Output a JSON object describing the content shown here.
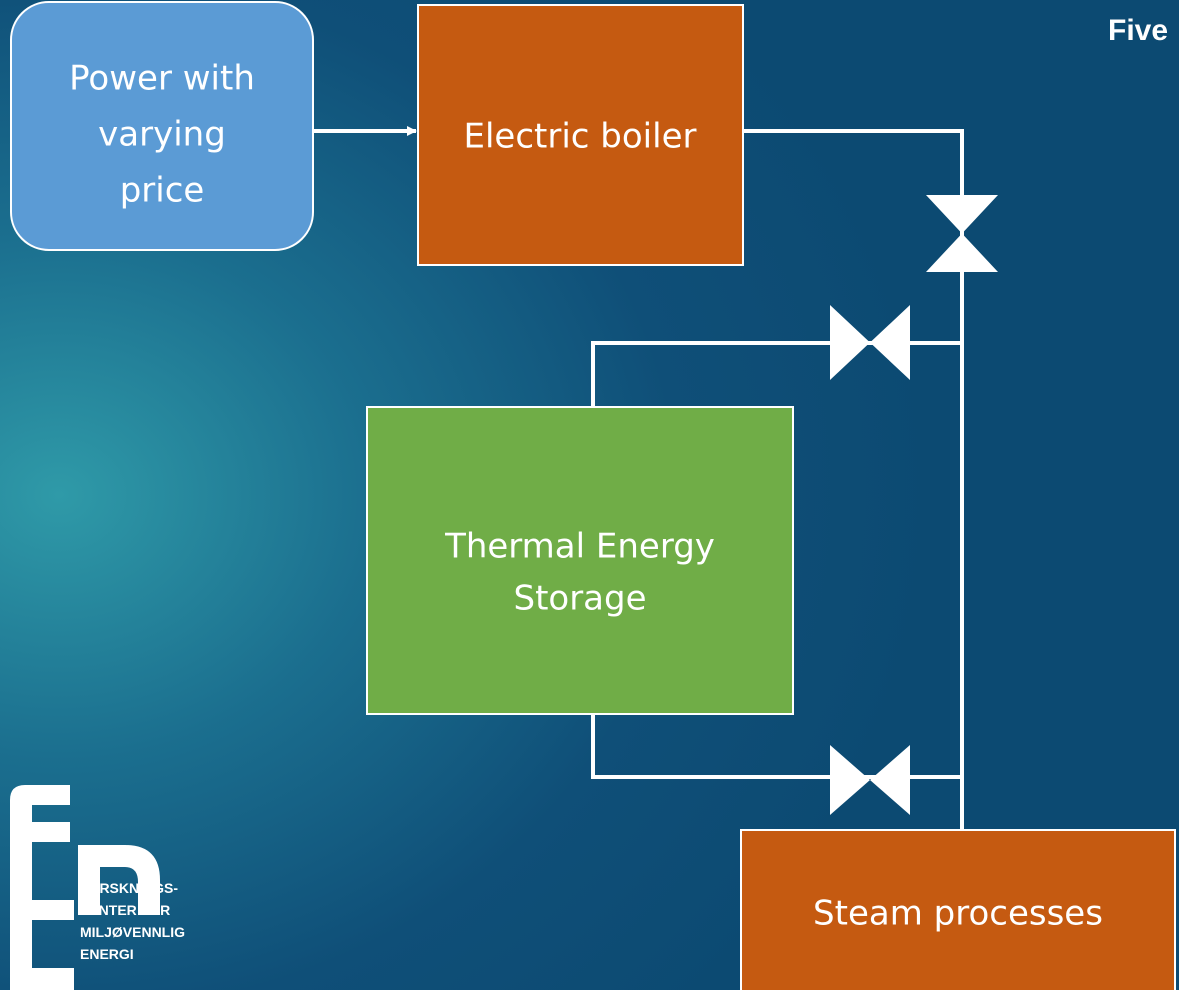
{
  "title": "Five",
  "nodes": [
    {
      "label": [
        "Power with",
        "varying",
        "price"
      ]
    },
    {
      "label": [
        "Electric boiler"
      ]
    },
    {
      "label": [
        "Thermal Energy",
        "Storage"
      ]
    },
    {
      "label": [
        "Steam processes"
      ]
    }
  ],
  "logo": {
    "text": [
      "FORSKNINGS-",
      "SENTER FOR",
      "MILJØVENNLIG",
      "ENERGI"
    ]
  }
}
